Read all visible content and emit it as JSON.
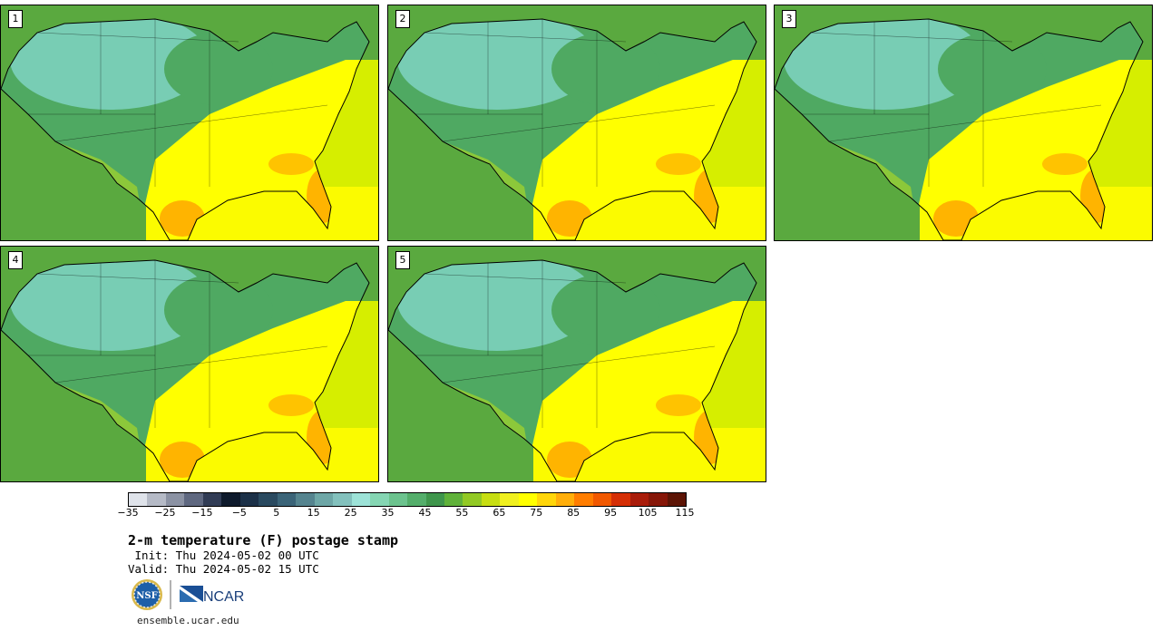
{
  "panels": [
    {
      "label": "1"
    },
    {
      "label": "2"
    },
    {
      "label": "3"
    },
    {
      "label": "4"
    },
    {
      "label": "5"
    }
  ],
  "colorbar": {
    "colors": [
      "#dfe3ea",
      "#b5bac6",
      "#8b92a3",
      "#5f6880",
      "#313c55",
      "#0e1a2c",
      "#1c3148",
      "#2a4a60",
      "#3b6478",
      "#55848f",
      "#6ea7a7",
      "#83c1bd",
      "#9de3d8",
      "#85d6b3",
      "#6cc38e",
      "#54ae6b",
      "#3f964c",
      "#60b23a",
      "#92c924",
      "#c7de12",
      "#f0f01f",
      "#ffff00",
      "#ffd60a",
      "#ffae0a",
      "#ff7d00",
      "#f15800",
      "#d52f06",
      "#a91c0a",
      "#861608",
      "#5c1405"
    ],
    "ticks": [
      "−35",
      "−25",
      "−15",
      "−5",
      "5",
      "15",
      "25",
      "35",
      "45",
      "55",
      "65",
      "75",
      "85",
      "95",
      "105",
      "115"
    ]
  },
  "title": "2-m temperature (F) postage stamp",
  "init_line": " Init: Thu 2024-05-02 00 UTC",
  "valid_line": "Valid: Thu 2024-05-02 15 UTC",
  "logos": {
    "nsf": "NSF",
    "ncar": "NCAR"
  },
  "url": "ensemble.ucar.edu",
  "field_colors": {
    "cold": "#7fd3c3",
    "cool": "#4fa962",
    "mild": "#8cc83a",
    "warm": "#ffff00",
    "hot": "#ffb400",
    "ocean_gulf": "#fbfb00",
    "ocean_atlantic": "#d6ee00",
    "ocean_pacific": "#5aa93f"
  }
}
